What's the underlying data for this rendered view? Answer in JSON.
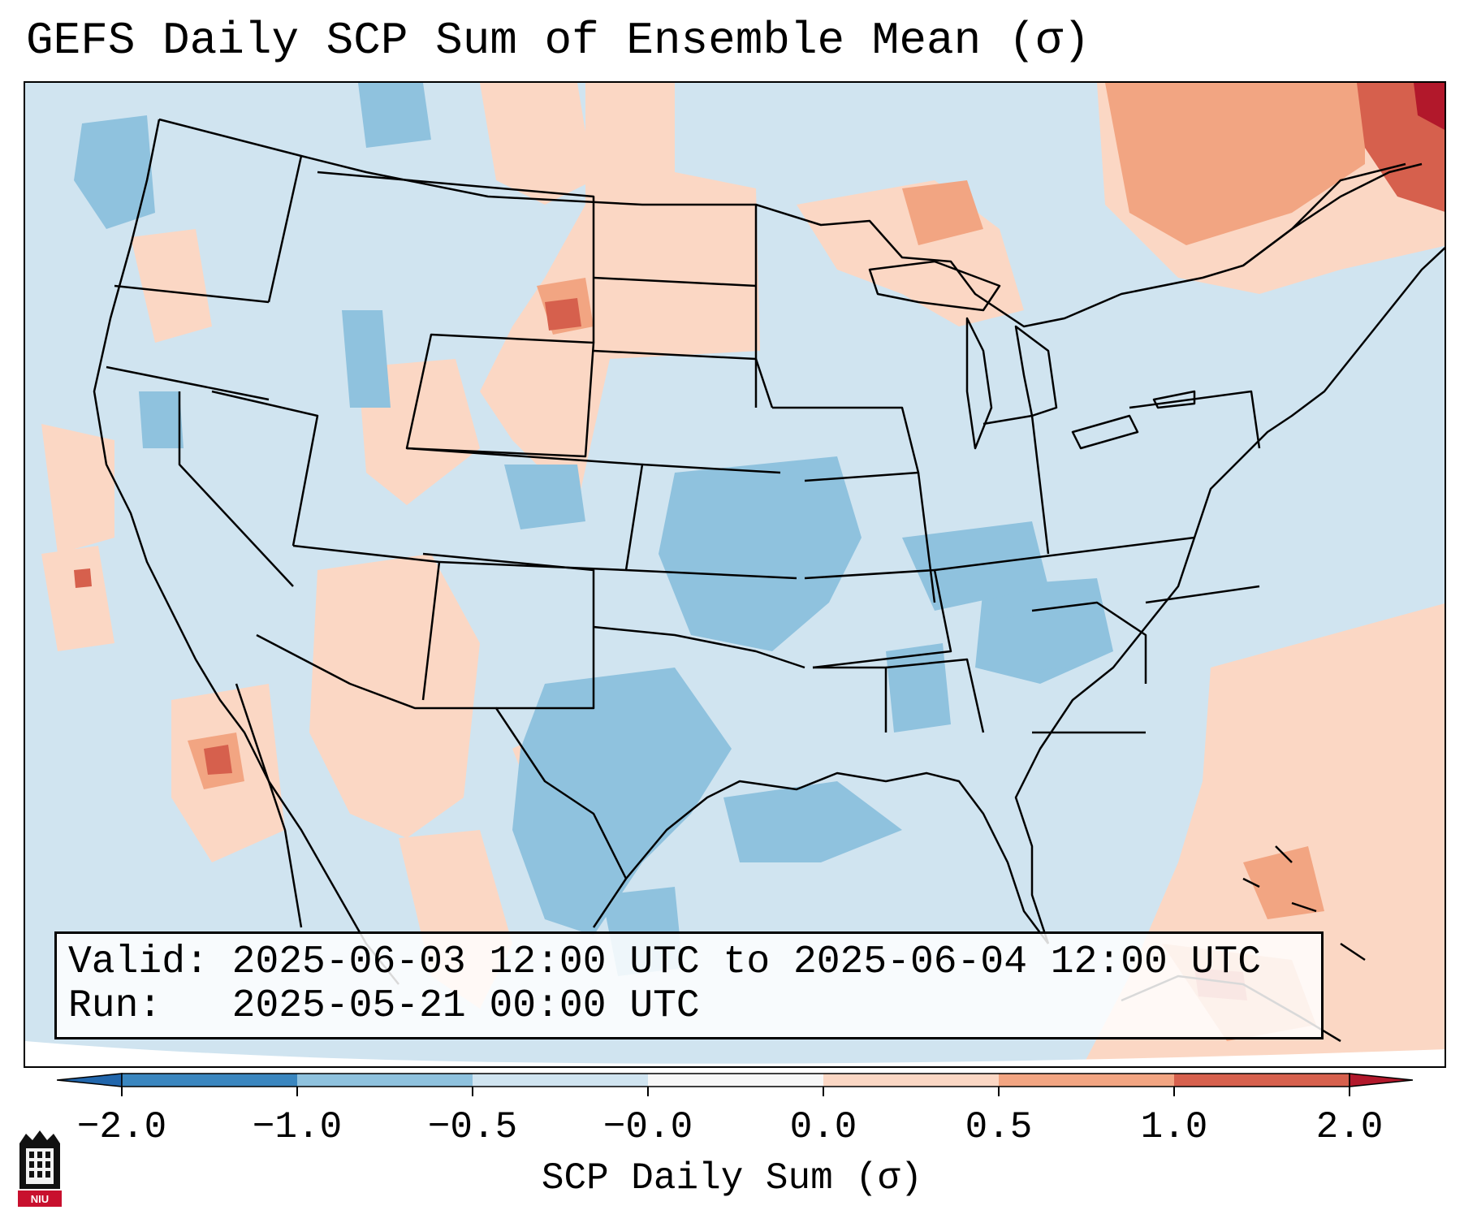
{
  "title": "GEFS Daily SCP Sum of Ensemble Mean (σ)",
  "map": {
    "projection": "Lambert Conformal (CONUS)",
    "colors": {
      "neg_2": "#3a86bf",
      "neg_1": "#8fc2de",
      "neg_05": "#d0e4f0",
      "zero": "#f7f7f7",
      "pos_05": "#fbd7c4",
      "pos_1": "#f2a582",
      "pos_2": "#d6604d",
      "extreme": "#b2182b"
    }
  },
  "info_box": {
    "valid_line": "Valid: 2025-06-03 12:00 UTC to 2025-06-04 12:00 UTC",
    "run_line": "Run:   2025-05-21 00:00 UTC"
  },
  "colorbar": {
    "tick_labels": [
      "−2.0",
      "−1.0",
      "−0.5",
      "−0.0",
      "0.0",
      "0.5",
      "1.0",
      "2.0"
    ],
    "label": "SCP Daily Sum (σ)",
    "segment_colors": [
      "#3a86bf",
      "#8fc2de",
      "#d0e4f0",
      "#f7f7f7",
      "#fbd7c4",
      "#f2a582",
      "#d6604d"
    ],
    "extend_low_color": "#2166ac",
    "extend_high_color": "#b2182b"
  },
  "logo": {
    "text": "NIU"
  }
}
